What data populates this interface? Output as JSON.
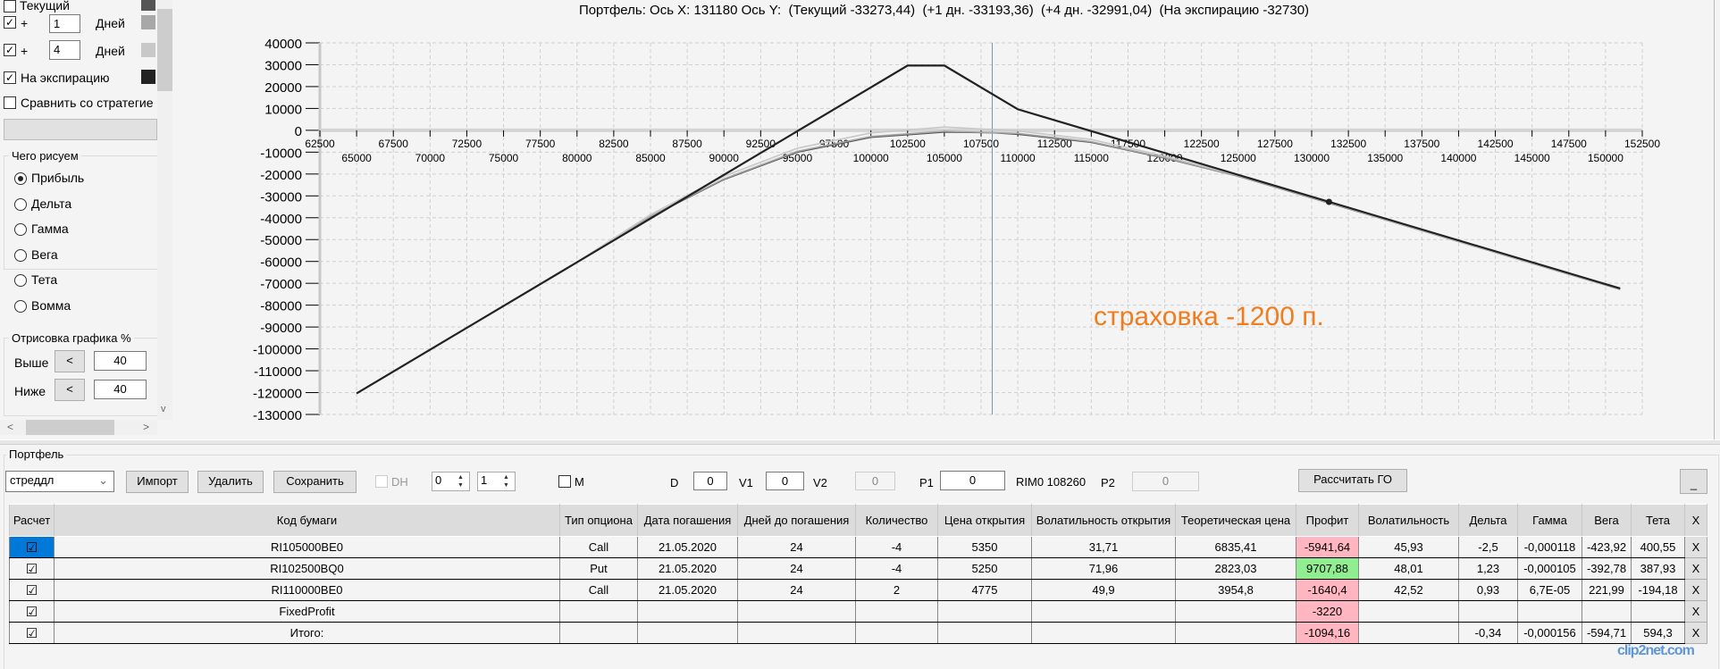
{
  "left_panel": {
    "current_label": "Текущий",
    "current_color": "#555555",
    "plus1": {
      "sign": "+",
      "value": "1",
      "unit": "Дней",
      "color": "#a8a8a8"
    },
    "plus4": {
      "sign": "+",
      "value": "4",
      "unit": "Дней",
      "color": "#c8c8c8"
    },
    "expiration": {
      "label": "На экспирацию",
      "color": "#222222"
    },
    "compare_label": "Сравнить со стратегие",
    "draw_group": {
      "title": "Чего рисуем",
      "options": [
        "Прибыль",
        "Дельта",
        "Гамма",
        "Вега",
        "Тета",
        "Вомма"
      ],
      "selected": 0
    },
    "range_group": {
      "title": "Отрисовка графика %",
      "above_label": "Выше",
      "above_value": "40",
      "below_label": "Ниже",
      "below_value": "40",
      "btn": "<"
    },
    "scroll_left": "<",
    "scroll_right": ">",
    "scroll_down": "v"
  },
  "chart_title": "Портфель: Ось X: 131180 Ось Y:  (Текущий -33273,44)  (+1 дн. -33193,36)  (+4 дн. -32991,04)  (На экспирацию -32730)",
  "annotation": {
    "text": "страховка -1200 п.",
    "color": "#f07c1e"
  },
  "chart_data": {
    "type": "line",
    "xlim": [
      62500,
      152500
    ],
    "ylim": [
      -130000,
      40000
    ],
    "x_ticks_upper": [
      62500,
      67500,
      72500,
      77500,
      82500,
      87500,
      92500,
      97500,
      102500,
      107500,
      112500,
      117500,
      122500,
      127500,
      132500,
      137500,
      142500,
      147500,
      152500
    ],
    "x_ticks_lower": [
      65000,
      70000,
      75000,
      80000,
      85000,
      90000,
      95000,
      100000,
      105000,
      110000,
      115000,
      120000,
      125000,
      130000,
      135000,
      140000,
      145000,
      150000
    ],
    "y_ticks": [
      40000,
      30000,
      20000,
      10000,
      0,
      -10000,
      -20000,
      -30000,
      -40000,
      -50000,
      -60000,
      -70000,
      -80000,
      -90000,
      -100000,
      -110000,
      -120000,
      -130000
    ],
    "grid": true,
    "current_x": 108260,
    "cursor_point": [
      131180,
      -32730
    ],
    "series": [
      {
        "name": "Текущий",
        "color": "#555555",
        "points": [
          [
            65000,
            -120300
          ],
          [
            75000,
            -80400
          ],
          [
            80000,
            -60500
          ],
          [
            85000,
            -39500
          ],
          [
            90000,
            -22500
          ],
          [
            95000,
            -10000
          ],
          [
            100000,
            -3200
          ],
          [
            105000,
            -800
          ],
          [
            108260,
            -1094
          ],
          [
            110000,
            -1800
          ],
          [
            115000,
            -5500
          ],
          [
            120000,
            -12700
          ],
          [
            125000,
            -21000
          ],
          [
            131180,
            -33273
          ],
          [
            140000,
            -50900
          ],
          [
            151000,
            -72800
          ]
        ]
      },
      {
        "name": "+1 дн.",
        "color": "#a8a8a8",
        "points": [
          [
            65000,
            -120300
          ],
          [
            75000,
            -80400
          ],
          [
            80000,
            -60400
          ],
          [
            85000,
            -39300
          ],
          [
            90000,
            -22200
          ],
          [
            95000,
            -9600
          ],
          [
            100000,
            -2800
          ],
          [
            105000,
            -400
          ],
          [
            110000,
            -1400
          ],
          [
            115000,
            -5200
          ],
          [
            120000,
            -12500
          ],
          [
            125000,
            -20900
          ],
          [
            131180,
            -33193
          ],
          [
            140000,
            -50850
          ],
          [
            151000,
            -72750
          ]
        ]
      },
      {
        "name": "+4 дн.",
        "color": "#c8c8c8",
        "points": [
          [
            65000,
            -120300
          ],
          [
            75000,
            -80400
          ],
          [
            80000,
            -60300
          ],
          [
            85000,
            -38600
          ],
          [
            90000,
            -21000
          ],
          [
            95000,
            -8200
          ],
          [
            100000,
            -1200
          ],
          [
            105000,
            1500
          ],
          [
            110000,
            -300
          ],
          [
            115000,
            -4200
          ],
          [
            120000,
            -11800
          ],
          [
            125000,
            -20600
          ],
          [
            131180,
            -32991
          ],
          [
            140000,
            -50800
          ],
          [
            151000,
            -72600
          ]
        ]
      },
      {
        "name": "На экспирацию",
        "color": "#222222",
        "points": [
          [
            65000,
            -120370
          ],
          [
            102500,
            29630
          ],
          [
            105000,
            29630
          ],
          [
            110000,
            9630
          ],
          [
            151000,
            -72370
          ]
        ]
      }
    ]
  },
  "portfolio": {
    "title": "Портфель",
    "strategy": "стреддл",
    "import": "Импорт",
    "delete": "Удалить",
    "save": "Сохранить",
    "dh": "DH",
    "spin1": "0",
    "spin2": "1",
    "m": "M",
    "d_label": "D",
    "d_value": "0",
    "v1_label": "V1",
    "v1_value": "0",
    "v2_label": "V2",
    "v2_value": "0",
    "p1_label": "P1",
    "p1_value": "0",
    "rim": "RIM0 108260",
    "p2_label": "P2",
    "p2_value": "0",
    "calc_go": "Рассчитать ГО",
    "minimize": "_"
  },
  "table": {
    "headers": [
      "Расчет",
      "Код бумаги",
      "Тип опциона",
      "Дата погашения",
      "Дней до погашения",
      "Количество",
      "Цена открытия",
      "Волатильность открытия",
      "Теоретическая цена",
      "Профит",
      "Волатильность",
      "Дельта",
      "Гамма",
      "Вега",
      "Тета",
      "X"
    ],
    "rows": [
      [
        "☑",
        "RI105000BE0",
        "Call",
        "21.05.2020",
        "24",
        "-4",
        "5350",
        "31,71",
        "6835,41",
        "-5941,64",
        "45,93",
        "-2,5",
        "-0,000118",
        "-423,92",
        "400,55",
        "X"
      ],
      [
        "☑",
        "RI102500BQ0",
        "Put",
        "21.05.2020",
        "24",
        "-4",
        "5250",
        "71,96",
        "2823,03",
        "9707,88",
        "48,01",
        "1,23",
        "-0,000105",
        "-392,78",
        "387,93",
        "X"
      ],
      [
        "☑",
        "RI110000BE0",
        "Call",
        "21.05.2020",
        "24",
        "2",
        "4775",
        "49,9",
        "3954,8",
        "-1640,4",
        "42,52",
        "0,93",
        "6,7E-05",
        "221,99",
        "-194,18",
        "X"
      ],
      [
        "☑",
        "FixedProfit",
        "",
        "",
        "",
        "",
        "",
        "",
        "",
        "-3220",
        "",
        "",
        "",
        "",
        "",
        "X"
      ],
      [
        "☑",
        "Итого:",
        "",
        "",
        "",
        "",
        "",
        "",
        "",
        "-1094,16",
        "",
        "-0,34",
        "-0,000156",
        "-594,71",
        "594,3",
        "X"
      ]
    ],
    "profit_colors": {
      "negative": "#ffb6c1",
      "positive": "#90ee90"
    }
  },
  "watermark": "clip2net.com"
}
